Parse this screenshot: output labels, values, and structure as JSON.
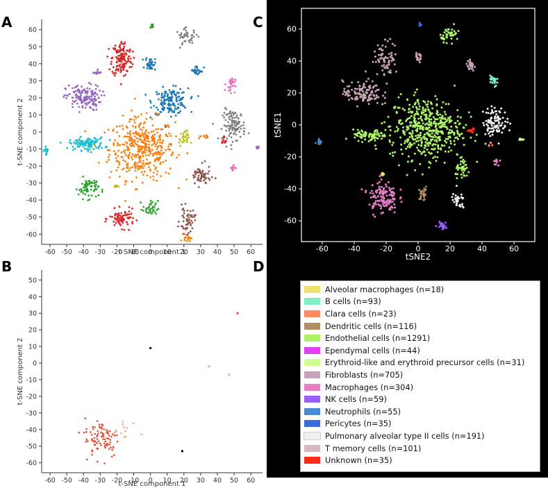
{
  "panels": {
    "a": "A",
    "b": "B",
    "c": "C",
    "d": "D"
  },
  "chart_data": [
    {
      "type": "scatter",
      "panel": "A",
      "xlabel": "t-SNE component 1",
      "ylabel": "t-SNE component 2",
      "xlim": [
        -65,
        67
      ],
      "ylim": [
        -66,
        66
      ],
      "xticks": [
        -60,
        -50,
        -40,
        -30,
        -20,
        -10,
        0,
        10,
        20,
        30,
        40,
        50,
        60
      ],
      "yticks": [
        -60,
        -50,
        -40,
        -30,
        -20,
        -10,
        0,
        10,
        20,
        30,
        40,
        50,
        60
      ],
      "clusters": [
        {
          "color": "#ff7f0e",
          "cx": -5,
          "cy": -10,
          "sx": 13,
          "sy": 12,
          "n": 420
        },
        {
          "color": "#1f77b4",
          "cx": 12,
          "cy": 18,
          "sx": 7,
          "sy": 5,
          "n": 160
        },
        {
          "color": "#d62728",
          "cx": -17,
          "cy": 43,
          "sx": 4,
          "sy": 7,
          "n": 150
        },
        {
          "color": "#9467bd",
          "cx": -40,
          "cy": 20,
          "sx": 7,
          "sy": 5,
          "n": 150
        },
        {
          "color": "#17becf",
          "cx": -38,
          "cy": -7,
          "sx": 7,
          "sy": 2.5,
          "n": 110
        },
        {
          "color": "#7f7f7f",
          "cx": 50,
          "cy": 4,
          "sx": 4.5,
          "sy": 6,
          "n": 110
        },
        {
          "color": "#7f7f7f",
          "cx": 22,
          "cy": 56,
          "sx": 4.5,
          "sy": 3,
          "n": 40
        },
        {
          "color": "#2ca02c",
          "cx": -37,
          "cy": -33,
          "sx": 4,
          "sy": 4,
          "n": 70
        },
        {
          "color": "#d62728",
          "cx": -17,
          "cy": -51,
          "sx": 5,
          "sy": 3.5,
          "n": 80
        },
        {
          "color": "#8c564b",
          "cx": 30,
          "cy": -26,
          "sx": 4,
          "sy": 4,
          "n": 60
        },
        {
          "color": "#8c564b",
          "cx": 22,
          "cy": -52,
          "sx": 3,
          "sy": 5,
          "n": 55
        },
        {
          "color": "#1f77b4",
          "cx": 0,
          "cy": 40,
          "sx": 2,
          "sy": 2.5,
          "n": 35
        },
        {
          "color": "#1f77b4",
          "cx": 28,
          "cy": 36,
          "sx": 2.5,
          "sy": 2,
          "n": 30
        },
        {
          "color": "#e377c2",
          "cx": 48,
          "cy": 28,
          "sx": 1.8,
          "sy": 3,
          "n": 30
        },
        {
          "color": "#e377c2",
          "cx": 49,
          "cy": -21,
          "sx": 1,
          "sy": 1.5,
          "n": 16
        },
        {
          "color": "#bcbd22",
          "cx": 20,
          "cy": -4,
          "sx": 2,
          "sy": 3,
          "n": 30
        },
        {
          "color": "#bcbd22",
          "cx": -21,
          "cy": -32,
          "sx": 1,
          "sy": 0.5,
          "n": 8
        },
        {
          "color": "#2ca02c",
          "cx": 0,
          "cy": -45,
          "sx": 3,
          "sy": 3,
          "n": 35
        },
        {
          "color": "#2ca02c",
          "cx": 1,
          "cy": 62,
          "sx": 0.8,
          "sy": 0.8,
          "n": 12
        },
        {
          "color": "#17becf",
          "cx": -62,
          "cy": -11,
          "sx": 1,
          "sy": 1.5,
          "n": 16
        },
        {
          "color": "#ff7f0e",
          "cx": 22,
          "cy": -62,
          "sx": 1.5,
          "sy": 1.5,
          "n": 20
        },
        {
          "color": "#ff7f0e",
          "cx": 32,
          "cy": -3,
          "sx": 2,
          "sy": 0.8,
          "n": 10
        },
        {
          "color": "#d62728",
          "cx": 44,
          "cy": -5,
          "sx": 1,
          "sy": 2,
          "n": 10
        },
        {
          "color": "#9467bd",
          "cx": 64,
          "cy": -9,
          "sx": 1,
          "sy": 0.4,
          "n": 8
        },
        {
          "color": "#9467bd",
          "cx": -32,
          "cy": 35,
          "sx": 1.5,
          "sy": 1,
          "n": 12
        }
      ]
    },
    {
      "type": "scatter",
      "panel": "B",
      "xlabel": "t-SNE component 1",
      "ylabel": "t-SNE component 2",
      "xlim": [
        -65,
        67
      ],
      "ylim": [
        -66,
        56
      ],
      "xticks": [
        -60,
        -50,
        -40,
        -30,
        -20,
        -10,
        0,
        10,
        20,
        30,
        40,
        50,
        60
      ],
      "yticks": [
        -60,
        -50,
        -40,
        -30,
        -20,
        -10,
        0,
        10,
        20,
        30,
        40,
        50
      ],
      "clusters": [
        {
          "color": "#e34a33",
          "cx": -29,
          "cy": -45,
          "sx": 7,
          "sy": 8,
          "n": 90
        },
        {
          "color": "#f4a582",
          "cx": -15,
          "cy": -42,
          "sx": 6,
          "sy": 6,
          "n": 14
        }
      ],
      "points": [
        {
          "x": 52,
          "y": 30,
          "color": "#e34a33"
        },
        {
          "x": 0,
          "y": 9,
          "color": "#000000"
        },
        {
          "x": 19,
          "y": -53,
          "color": "#000000"
        },
        {
          "x": 47,
          "y": -7,
          "color": "#f4a582"
        },
        {
          "x": 35,
          "y": -2,
          "color": "#f4a582"
        }
      ]
    },
    {
      "type": "scatter",
      "panel": "C",
      "xlabel": "tSNE2",
      "ylabel": "tSNE1",
      "xlim": [
        -73,
        73
      ],
      "ylim": [
        -73,
        73
      ],
      "xticks": [
        -60,
        -40,
        -20,
        0,
        20,
        40,
        60
      ],
      "yticks": [
        -60,
        -40,
        -20,
        0,
        20,
        40,
        60
      ],
      "clusters": [
        {
          "color": "#aef26a",
          "cx": 5,
          "cy": -2,
          "sx": 15,
          "sy": 13,
          "n": 480
        },
        {
          "color": "#c8a2b8",
          "cx": -35,
          "cy": 20,
          "sx": 8,
          "sy": 5,
          "n": 120
        },
        {
          "color": "#c8a2b8",
          "cx": -20,
          "cy": 42,
          "sx": 5,
          "sy": 7,
          "n": 70
        },
        {
          "color": "#f0f0f0",
          "cx": 48,
          "cy": 2,
          "sx": 5,
          "sy": 6,
          "n": 100
        },
        {
          "color": "#e580c8",
          "cx": -22,
          "cy": -45,
          "sx": 6,
          "sy": 7,
          "n": 130
        },
        {
          "color": "#aef26a",
          "cx": -30,
          "cy": -7,
          "sx": 7,
          "sy": 2.5,
          "n": 80
        },
        {
          "color": "#aef26a",
          "cx": 20,
          "cy": 57,
          "sx": 4,
          "sy": 3,
          "n": 40
        },
        {
          "color": "#aef26a",
          "cx": 28,
          "cy": -28,
          "sx": 3,
          "sy": 4,
          "n": 40
        },
        {
          "color": "#f0f0f0",
          "cx": 25,
          "cy": -48,
          "sx": 3,
          "sy": 4,
          "n": 30
        },
        {
          "color": "#c8a2b8",
          "cx": 33,
          "cy": 37,
          "sx": 2,
          "sy": 2,
          "n": 25
        },
        {
          "color": "#c8a2b8",
          "cx": 0,
          "cy": 42,
          "sx": 2,
          "sy": 2.5,
          "n": 20
        },
        {
          "color": "#80f0c0",
          "cx": 47,
          "cy": 28,
          "sx": 1.5,
          "sy": 3,
          "n": 25
        },
        {
          "color": "#b09060",
          "cx": 3,
          "cy": -43,
          "sx": 2,
          "sy": 3,
          "n": 25
        },
        {
          "color": "#9a60ff",
          "cx": 15,
          "cy": -63,
          "sx": 2,
          "sy": 1.5,
          "n": 20
        },
        {
          "color": "#4a8ad0",
          "cx": -62,
          "cy": -10,
          "sx": 1,
          "sy": 1.5,
          "n": 14
        },
        {
          "color": "#ff2a1a",
          "cx": 33,
          "cy": -3,
          "sx": 2,
          "sy": 1,
          "n": 12
        },
        {
          "color": "#e580c8",
          "cx": 49,
          "cy": -23,
          "sx": 1,
          "sy": 1.5,
          "n": 12
        },
        {
          "color": "#f0e070",
          "cx": -22,
          "cy": -31,
          "sx": 1,
          "sy": 0.5,
          "n": 6
        },
        {
          "color": "#d0ff90",
          "cx": 64,
          "cy": -9,
          "sx": 1,
          "sy": 0.4,
          "n": 8
        },
        {
          "color": "#3a6ae0",
          "cx": 1,
          "cy": 63,
          "sx": 0.6,
          "sy": 0.6,
          "n": 8
        },
        {
          "color": "#ff8a60",
          "cx": 45,
          "cy": -12,
          "sx": 0.6,
          "sy": 0.6,
          "n": 5
        }
      ]
    }
  ],
  "legend": {
    "items": [
      {
        "label": "Alveolar macrophages (n=18)",
        "color": "#f0e070"
      },
      {
        "label": "B cells (n=93)",
        "color": "#80f0c0"
      },
      {
        "label": "Clara cells (n=23)",
        "color": "#ff8a60"
      },
      {
        "label": "Dendritic cells (n=116)",
        "color": "#b09060"
      },
      {
        "label": "Endothelial cells (n=1291)",
        "color": "#aef26a"
      },
      {
        "label": "Ependymal cells (n=44)",
        "color": "#e040f0"
      },
      {
        "label": "Erythroid-like and erythroid precursor cells (n=31)",
        "color": "#d0ff90"
      },
      {
        "label": "Fibroblasts (n=705)",
        "color": "#c8a2b8"
      },
      {
        "label": "Macrophages (n=304)",
        "color": "#e580c8"
      },
      {
        "label": "NK cells (n=59)",
        "color": "#9a60ff"
      },
      {
        "label": "Neutrophils (n=55)",
        "color": "#4a8ad0"
      },
      {
        "label": "Pericytes (n=35)",
        "color": "#3a6ae0"
      },
      {
        "label": "Pulmonary alveolar type II cells (n=191)",
        "color": "#f0f0f0"
      },
      {
        "label": "T memory cells (n=101)",
        "color": "#d8b8c0"
      },
      {
        "label": "Unknown (n=35)",
        "color": "#ff2a1a"
      }
    ]
  }
}
